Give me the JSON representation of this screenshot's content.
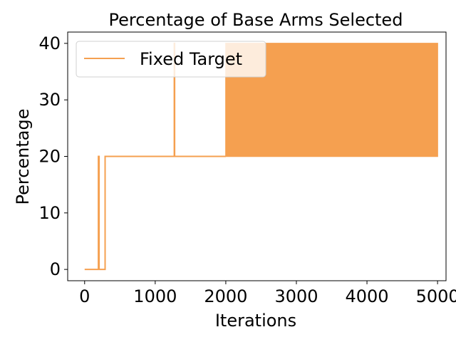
{
  "chart_data": {
    "type": "line",
    "title": "Percentage of Base Arms Selected",
    "xlabel": "Iterations",
    "ylabel": "Percentage",
    "xlim": [
      -240,
      5120
    ],
    "ylim": [
      -2,
      42
    ],
    "xticks": [
      0,
      1000,
      2000,
      3000,
      4000,
      5000
    ],
    "yticks": [
      0,
      10,
      20,
      30,
      40
    ],
    "grid": false,
    "legend": {
      "placement": "top-left"
    },
    "series": [
      {
        "name": "Fixed Target",
        "color": "#f5a050",
        "points": [
          [
            0,
            0
          ],
          [
            195,
            0
          ],
          [
            195,
            20
          ],
          [
            205,
            20
          ],
          [
            205,
            0
          ],
          [
            290,
            0
          ],
          [
            290,
            20
          ],
          [
            1270,
            20
          ],
          [
            1270,
            40
          ],
          [
            1275,
            40
          ],
          [
            1275,
            20
          ],
          [
            2000,
            20
          ]
        ],
        "oscillation_band": {
          "x_start": 2000,
          "x_end": 5000,
          "low": 20,
          "high": 40
        }
      }
    ]
  }
}
